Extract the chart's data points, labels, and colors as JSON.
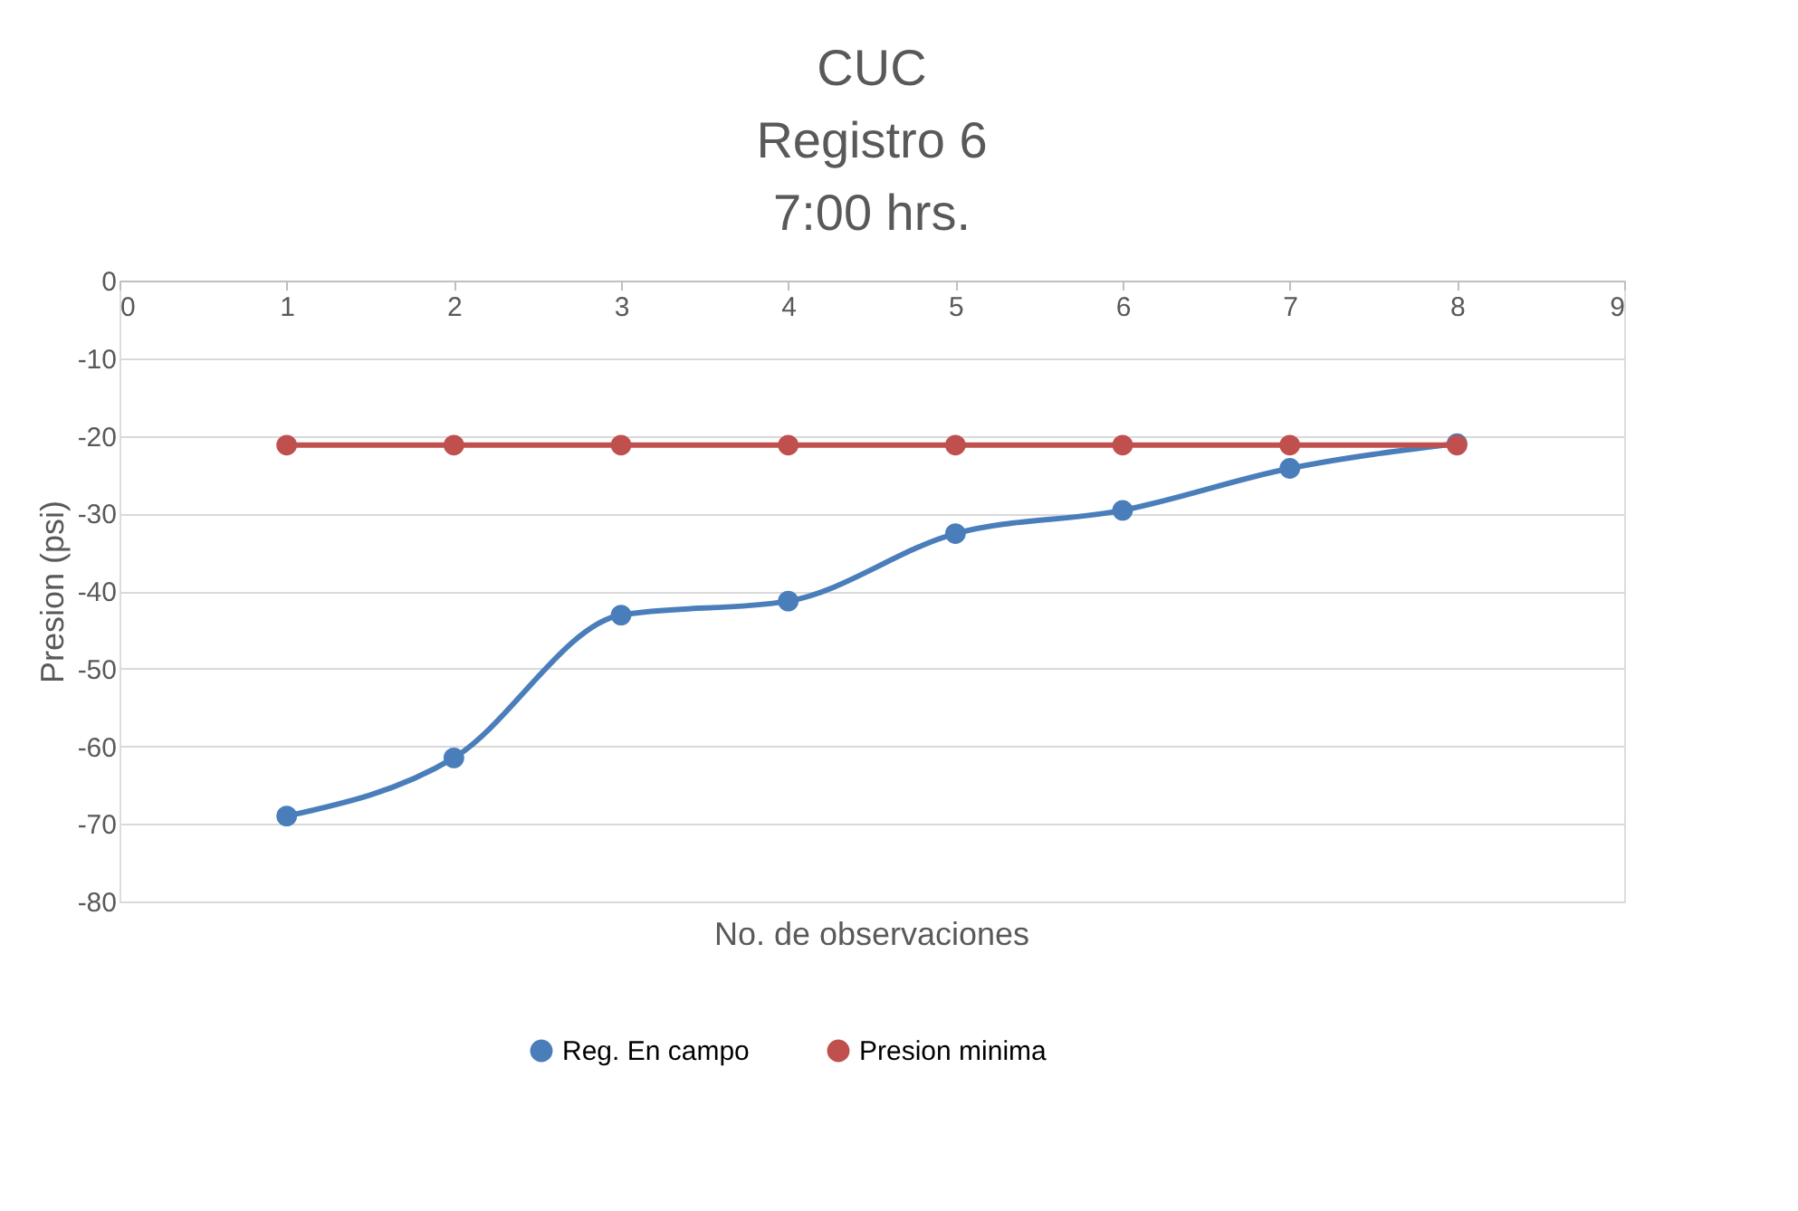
{
  "chart_data": {
    "type": "line",
    "title": "CUC\nRegistro 6\n7:00 hrs.",
    "xlabel": "No. de observaciones",
    "ylabel": "Presion (psi)",
    "x": [
      1,
      2,
      3,
      4,
      5,
      6,
      7,
      8
    ],
    "series": [
      {
        "name": "Reg. En campo",
        "color": "#4a7ebb",
        "values": [
          -69.0,
          -61.5,
          -43.1,
          -41.3,
          -32.6,
          -29.6,
          -24.2,
          -21.0
        ]
      },
      {
        "name": "Presion minima",
        "color": "#c0504d",
        "values": [
          -21.2,
          -21.2,
          -21.2,
          -21.2,
          -21.2,
          -21.2,
          -21.2,
          -21.2
        ]
      }
    ],
    "xlim": [
      0,
      9
    ],
    "xticks": [
      0,
      1,
      2,
      3,
      4,
      5,
      6,
      7,
      8,
      9
    ],
    "ylim": [
      -80,
      0
    ],
    "yticks": [
      0,
      -10,
      -20,
      -30,
      -40,
      -50,
      -60,
      -70,
      -80
    ],
    "grid": "y",
    "legend": "bottom",
    "marker": "circle",
    "line_style": "solid"
  }
}
